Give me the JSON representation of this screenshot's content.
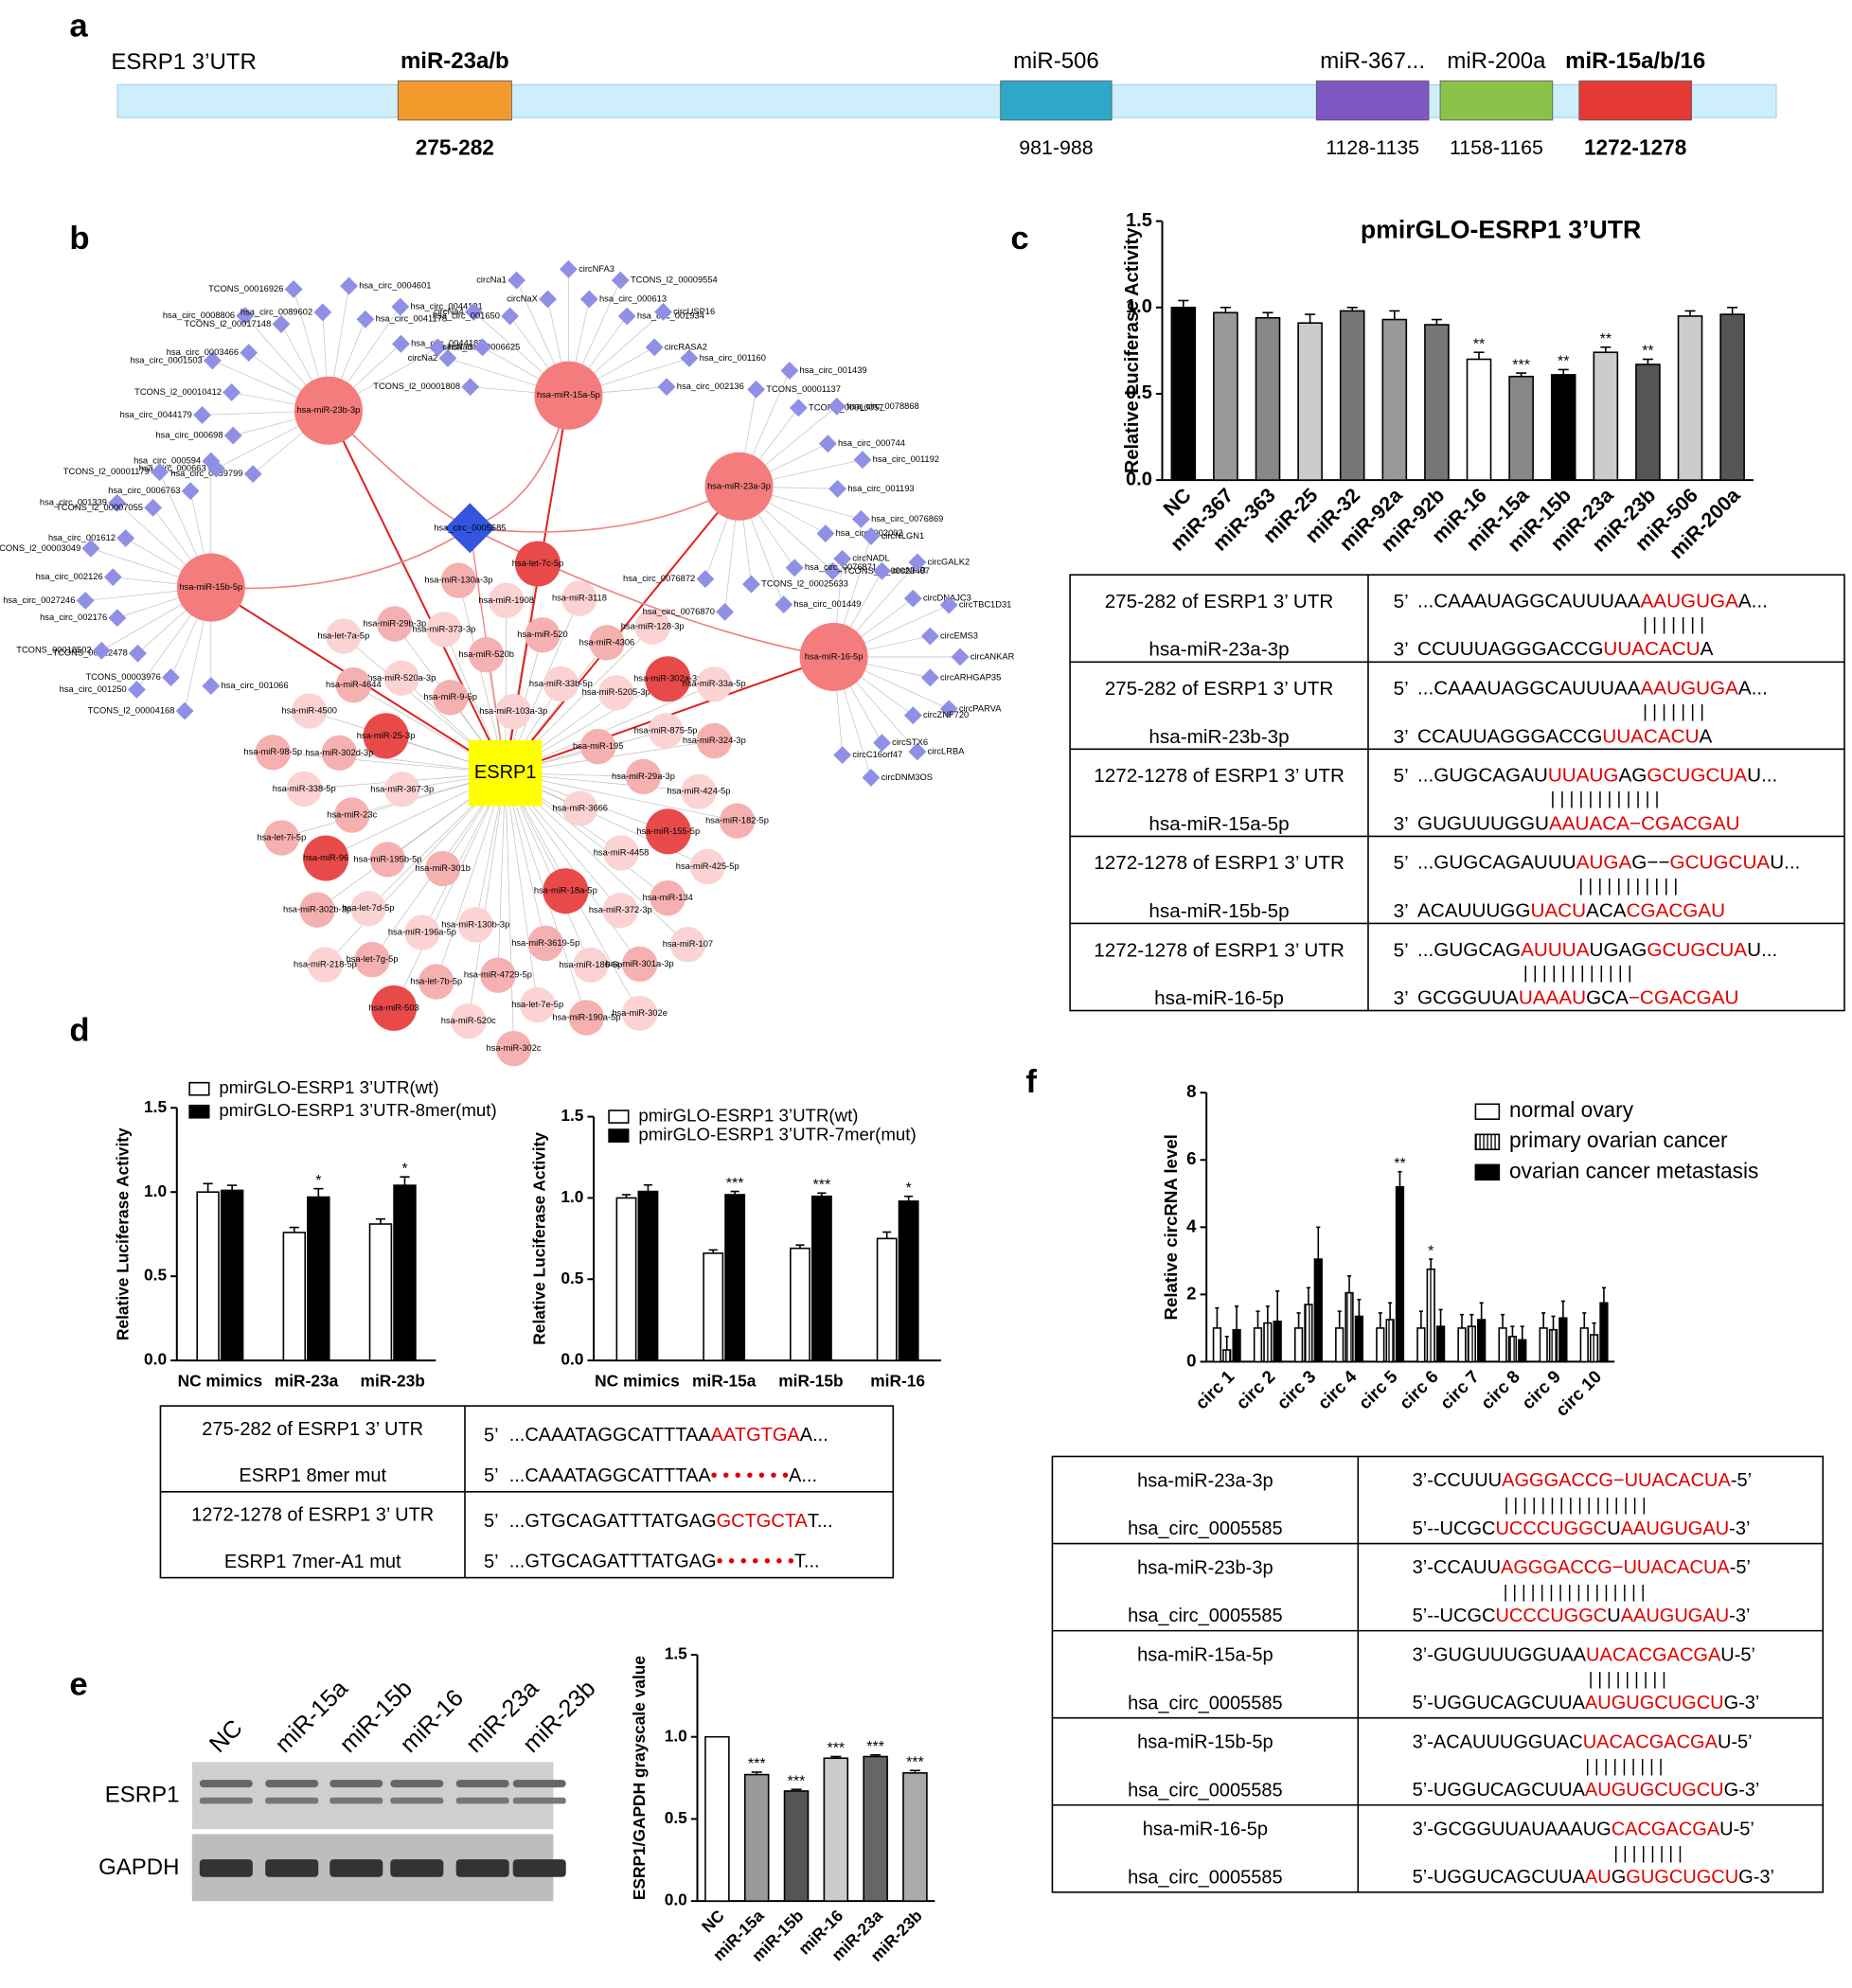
{
  "panel_labels": [
    "a",
    "b",
    "c",
    "d",
    "e",
    "f"
  ],
  "panel_a": {
    "title": "ESRP1 3’UTR",
    "sites": [
      {
        "mirna": "miR-23a/b",
        "position": "275-282",
        "color": "#f39a2c",
        "bold": true
      },
      {
        "mirna": "miR-506",
        "position": "981-988",
        "color": "#2fa8c8",
        "bold": false
      },
      {
        "mirna": "miR-367...",
        "position": "1128-1135",
        "color": "#7e57c2",
        "bold": false
      },
      {
        "mirna": "miR-200a",
        "position": "1158-1165",
        "color": "#8bc34a",
        "bold": false
      },
      {
        "mirna": "miR-15a/b/16",
        "position": "1272-1278",
        "color": "#e53935",
        "bold": true
      }
    ]
  },
  "network": {
    "hub": "ESRP1",
    "circ": "hsa_circ_0005585",
    "mirnas": [
      {
        "name": "hsa-miR-23b-3p",
        "satellites": [
          "hsa_circ_0089799",
          "hsa_circ_000663",
          "hsa_circ_000698",
          "hsa_circ_0044179",
          "TCONS_l2_00010412",
          "hsa_circ_0001503",
          "hsa_circ_0003466",
          "hsa_circ_0008806",
          "TCONS_l2_00017148",
          "TCONS_00016926",
          "hsa_circ_0089602",
          "hsa_circ_0004601",
          "hsa_circ_0041178",
          "hsa_circ_0044191",
          "hsa_circ_0044187",
          "hsa_circ_0006625"
        ]
      },
      {
        "name": "hsa-miR-15a-5p",
        "satellites": [
          "TCONS_l2_00001808",
          "circNa2",
          "circNa3",
          "circNa4",
          "hsa_circ_001650",
          "circNa1",
          "circNaX",
          "circNFA3",
          "hsa_circ_000613",
          "TCONS_l2_00009554",
          "hsa_circ_001934",
          "circUSP16",
          "circRASA2",
          "hsa_circ_001160",
          "hsa_circ_002136"
        ]
      },
      {
        "name": "hsa-miR-23a-3p",
        "satellites": [
          "TCONS_00001137",
          "hsa_circ_001439",
          "TCONS_00010057",
          "hsa_circ_0078868",
          "hsa_circ_000744",
          "hsa_circ_001192",
          "hsa_circ_001193",
          "hsa_circ_0076869",
          "hsa_circ_002002",
          "TCONS_l2_00023407",
          "hsa_circ_0076871",
          "hsa_circ_001449",
          "TCONS_l2_00025633",
          "hsa_circ_0076870",
          "hsa_circ_0076872"
        ]
      },
      {
        "name": "hsa-miR-15b-5p",
        "satellites": [
          "hsa_circ_001066",
          "TCONS_l2_00004168",
          "TCONS_00003976",
          "hsa_circ_001250",
          "TCONS_00022478",
          "TCONS_00018502",
          "hsa_circ_002176",
          "hsa_circ_0027246",
          "hsa_circ_002126",
          "TCONS_l2_00003049",
          "hsa_circ_001612",
          "hsa_circ_001339",
          "TCONS_l2_00007055",
          "TCONS_l2_00001179",
          "hsa_circ_0006763",
          "hsa_circ_000594"
        ]
      },
      {
        "name": "hsa-miR-16-5p",
        "satellites": [
          "circNADL",
          "circNLGN1",
          "circNFIB",
          "circGALK2",
          "circDNAJC3",
          "circTBC1D31",
          "circEMS3",
          "circANKAR",
          "circARHGAP35",
          "circPARVA",
          "circZNF720",
          "circLRBA",
          "circSTX6",
          "circDNM3OS",
          "circC16orf47"
        ]
      }
    ],
    "cluster": [
      "hsa-miR-3666",
      "hsa-miR-301b",
      "hsa-miR-103a-3p",
      "hsa-miR-18a-5p",
      "hsa-miR-367-3p",
      "hsa-miR-195",
      "hsa-miR-130b-3p",
      "hsa-miR-9-5p",
      "hsa-miR-4458",
      "hsa-miR-195b-5p",
      "hsa-miR-33b-5p",
      "hsa-miR-3619-5p",
      "hsa-miR-25-3p",
      "hsa-miR-29a-3p",
      "hsa-miR-196a-5p",
      "hsa-miR-520b",
      "hsa-miR-372-3p",
      "hsa-miR-23c",
      "hsa-miR-5205-3p",
      "hsa-miR-4729-5p",
      "hsa-miR-520a-3p",
      "hsa-miR-155-5p",
      "hsa-let-7d-5p",
      "hsa-miR-520",
      "hsa-miR-186-5p",
      "hsa-miR-302d-3p",
      "hsa-miR-875-5p",
      "hsa-let-7b-5p",
      "hsa-miR-373-3p",
      "hsa-miR-134",
      "hsa-miR-96",
      "hsa-miR-4306",
      "hsa-let-7e-5p",
      "hsa-miR-4644",
      "hsa-miR-424-5p",
      "hsa-let-7g-5p",
      "hsa-miR-1908",
      "hsa-miR-301a-3p",
      "hsa-miR-338-5p",
      "hsa-miR-302a-3p",
      "hsa-miR-520c",
      "hsa-miR-29b-3p",
      "hsa-miR-425-5p",
      "hsa-miR-302b-3p",
      "hsa-miR-3118",
      "hsa-miR-190a-5p",
      "hsa-miR-4500",
      "hsa-miR-324-3p",
      "hsa-miR-503",
      "hsa-miR-130a-3p",
      "hsa-miR-107",
      "hsa-let-7i-5p",
      "hsa-miR-128-3p",
      "hsa-miR-302c",
      "hsa-let-7a-5p",
      "hsa-miR-182-5p",
      "hsa-miR-218-5p",
      "hsa-let-7c-5p",
      "hsa-miR-302e",
      "hsa-miR-98-5p",
      "hsa-miR-33a-5p"
    ]
  },
  "chart_data": [
    {
      "type": "bar",
      "title": "pmirGLO-ESRP1 3’UTR",
      "y_label": "Relative Luciferase Activity",
      "categories": [
        "NC",
        "miR-367",
        "miR-363",
        "miR-25",
        "miR-32",
        "miR-92a",
        "miR-92b",
        "miR-16",
        "miR-15a",
        "miR-15b",
        "miR-23a",
        "miR-23b",
        "miR-506",
        "miR-200a"
      ],
      "values": [
        1.0,
        0.97,
        0.94,
        0.91,
        0.98,
        0.93,
        0.9,
        0.7,
        0.6,
        0.61,
        0.74,
        0.67,
        0.95,
        0.96
      ],
      "errors": [
        0.04,
        0.03,
        0.03,
        0.05,
        0.02,
        0.05,
        0.03,
        0.04,
        0.02,
        0.03,
        0.03,
        0.03,
        0.03,
        0.04
      ],
      "colors": [
        "#000000",
        "#999999",
        "#888888",
        "#cccccc",
        "#777777",
        "#999999",
        "#777777",
        "#ffffff",
        "#888888",
        "#000000",
        "#cccccc",
        "#555555",
        "#cccccc",
        "#555555"
      ],
      "significance": [
        null,
        null,
        null,
        null,
        null,
        null,
        null,
        "**",
        "***",
        "**",
        "**",
        "**",
        null,
        null
      ],
      "ylim": [
        0,
        1.5
      ],
      "yticks": [
        {
          "value": 0,
          "label": "0.0"
        },
        0.5,
        {
          "value": 1,
          "label": "1.0"
        },
        1.5
      ]
    },
    {
      "type": "bar",
      "y_label": "Relative Luciferase Activity",
      "categories": [
        "NC mimics",
        "miR-23a",
        "miR-23b"
      ],
      "series": [
        {
          "name": "pmirGLO-ESRP1 3’UTR(wt)",
          "color": "#ffffff",
          "values": [
            1.0,
            0.76,
            0.81
          ],
          "errors": [
            0.05,
            0.03,
            0.03
          ]
        },
        {
          "name": "pmirGLO-ESRP1 3’UTR-8mer(mut)",
          "color": "#000000",
          "values": [
            1.01,
            0.97,
            1.04
          ],
          "errors": [
            0.03,
            0.05,
            0.05
          ],
          "significance": [
            null,
            "*",
            "*"
          ]
        }
      ],
      "ylim": [
        0,
        1.5
      ],
      "yticks": [
        {
          "value": 0,
          "label": "0.0"
        },
        0.5,
        {
          "value": 1,
          "label": "1.0"
        },
        1.5
      ]
    },
    {
      "type": "bar",
      "y_label": "Relative Luciferase Activity",
      "categories": [
        "NC mimics",
        "miR-15a",
        "miR-15b",
        "miR-16"
      ],
      "series": [
        {
          "name": "pmirGLO-ESRP1 3’UTR(wt)",
          "color": "#ffffff",
          "values": [
            1.0,
            0.66,
            0.69,
            0.75
          ],
          "errors": [
            0.02,
            0.02,
            0.02,
            0.04
          ]
        },
        {
          "name": "pmirGLO-ESRP1 3’UTR-7mer(mut)",
          "color": "#000000",
          "values": [
            1.04,
            1.02,
            1.01,
            0.98
          ],
          "errors": [
            0.04,
            0.02,
            0.02,
            0.03
          ],
          "significance": [
            null,
            "***",
            "***",
            "*"
          ]
        }
      ],
      "ylim": [
        0,
        1.5
      ],
      "yticks": [
        {
          "value": 0,
          "label": "0.0"
        },
        0.5,
        {
          "value": 1,
          "label": "1.0"
        },
        1.5
      ]
    },
    {
      "type": "bar",
      "y_label": "ESRP1/GAPDH grayscale value",
      "categories": [
        "NC",
        "miR-15a",
        "miR-15b",
        "miR-16",
        "miR-23a",
        "miR-23b"
      ],
      "values": [
        1.0,
        0.77,
        0.67,
        0.87,
        0.88,
        0.78
      ],
      "errors": [
        null,
        0.015,
        0.01,
        0.01,
        0.01,
        0.015
      ],
      "colors": [
        "#ffffff",
        "#999999",
        "#555555",
        "#cccccc",
        "#666666",
        "#aaaaaa"
      ],
      "significance": [
        null,
        "***",
        "***",
        "***",
        "***",
        "***"
      ],
      "ylim": [
        0,
        1.5
      ],
      "yticks": [
        {
          "value": 0,
          "label": "0.0"
        },
        0.5,
        {
          "value": 1,
          "label": "1.0"
        },
        1.5
      ]
    },
    {
      "type": "bar",
      "y_label": "Relative circRNA level",
      "categories": [
        "circ 1",
        "circ 2",
        "circ 3",
        "circ 4",
        "circ 5",
        "circ 6",
        "circ 7",
        "circ 8",
        "circ 9",
        "circ 10"
      ],
      "series": [
        {
          "name": "normal ovary",
          "color": "#ffffff",
          "values": [
            1,
            1,
            1,
            1,
            1,
            1,
            1,
            1,
            1,
            1
          ],
          "errors": [
            0.6,
            0.5,
            0.45,
            0.5,
            0.45,
            0.5,
            0.4,
            0.4,
            0.45,
            0.45
          ]
        },
        {
          "name": "primary ovarian cancer",
          "color": "#ffffff",
          "hatch": true,
          "values": [
            0.35,
            1.15,
            1.7,
            2.05,
            1.25,
            2.75,
            1.05,
            0.75,
            0.95,
            0.8
          ],
          "errors": [
            0.4,
            0.5,
            0.5,
            0.5,
            0.5,
            0.3,
            0.35,
            0.3,
            0.4,
            0.35
          ],
          "significance": [
            null,
            null,
            null,
            null,
            null,
            "*",
            null,
            null,
            null,
            null
          ]
        },
        {
          "name": "ovarian cancer metastasis",
          "color": "#000000",
          "values": [
            0.95,
            1.2,
            3.05,
            1.35,
            5.2,
            1.05,
            1.25,
            0.65,
            1.3,
            1.75
          ],
          "errors": [
            0.7,
            0.9,
            0.95,
            0.5,
            0.45,
            0.5,
            0.5,
            0.4,
            0.5,
            0.45
          ],
          "significance": [
            null,
            null,
            null,
            null,
            "**",
            null,
            null,
            null,
            null,
            null
          ]
        }
      ],
      "ylim": [
        0,
        8
      ],
      "yticks": [
        0,
        2,
        4,
        6,
        8
      ]
    }
  ],
  "panel_c_table": {
    "rows": [
      {
        "site": "275-282 of ESRP1 3’ UTR",
        "mirna": "hsa-miR-23a-3p",
        "top": {
          "prefix": "5’",
          "segments": [
            "...CAAAUAGGCAUUUAA",
            "AAUGUGA",
            "A..."
          ]
        },
        "pairs": "| | | | | | |",
        "bottom": {
          "prefix": "3’",
          "segments": [
            "CCUUUAGGGACCG",
            "UUACACU",
            "A"
          ]
        }
      },
      {
        "site": "275-282 of ESRP1 3’ UTR",
        "mirna": "hsa-miR-23b-3p",
        "top": {
          "prefix": "5’",
          "segments": [
            "...CAAAUAGGCAUUUAA",
            "AAUGUGA",
            "A..."
          ]
        },
        "pairs": "| | | | | | |",
        "bottom": {
          "prefix": "3’",
          "segments": [
            "CCAUUAGGGACCG",
            "UUACACU",
            "A"
          ]
        }
      },
      {
        "site": "1272-1278 of ESRP1 3’ UTR",
        "mirna": "hsa-miR-15a-5p",
        "top": {
          "prefix": "5’",
          "segments": [
            "...GUGCAGAU",
            "UUAUG",
            "AG",
            "GCUGCUA",
            "U..."
          ]
        },
        "pairs": "| | | | |        | | | | | | |",
        "bottom": {
          "prefix": "3’",
          "segments": [
            "GUGUUUGGU",
            "AAUACA−CGACGAU"
          ]
        }
      },
      {
        "site": "1272-1278 of ESRP1 3’ UTR",
        "mirna": "hsa-miR-15b-5p",
        "top": {
          "prefix": "5’",
          "segments": [
            "...GUGCAGAUUU",
            "AUGA",
            "G−−",
            "GCUGCUA",
            "U..."
          ]
        },
        "pairs": "| | | |          | | | | | | |",
        "bottom": {
          "prefix": "3’",
          "segments": [
            "ACAUUUGG",
            "UACU",
            "ACA",
            "CGACGAU"
          ]
        }
      },
      {
        "site": "1272-1278 of ESRP1 3’ UTR",
        "mirna": "hsa-miR-16-5p",
        "top": {
          "prefix": "5’",
          "segments": [
            "...GUGCAG",
            "AUUUA",
            "UGAG",
            "GCUGCUA",
            "U..."
          ]
        },
        "pairs": "| | | | |          | | | | | | |",
        "bottom": {
          "prefix": "3’",
          "segments": [
            "GCGGUUA",
            "UAAAU",
            "GCA",
            "−CGACGAU"
          ]
        }
      }
    ]
  },
  "panel_d_table": {
    "rows": [
      {
        "site": "275-282 of ESRP1 3’ UTR",
        "mirna": "ESRP1 8mer mut",
        "top": {
          "prefix": "5’",
          "segments": [
            "...CAAATAGGCATTTAA",
            "AATGTGA",
            "A..."
          ]
        },
        "bottom": {
          "prefix": "5’",
          "segments": [
            "...CAAATAGGCATTTAA",
            "• • • • • • •",
            "A..."
          ]
        }
      },
      {
        "site": "1272-1278 of ESRP1 3’ UTR",
        "mirna": "ESRP1 7mer-A1 mut",
        "top": {
          "prefix": "5’",
          "segments": [
            "...GTGCAGATTTATGAG",
            "GCTGCTA",
            "T..."
          ]
        },
        "bottom": {
          "prefix": "5’",
          "segments": [
            "...GTGCAGATTTATGAG",
            "• • • • • • •",
            "T..."
          ]
        }
      }
    ]
  },
  "panel_e_blot": {
    "lanes": [
      "NC",
      "miR-15a",
      "miR-15b",
      "miR-16",
      "miR-23a",
      "miR-23b"
    ],
    "bands": [
      "ESRP1",
      "GAPDH"
    ]
  },
  "panel_f_table": {
    "rows": [
      {
        "site": "hsa-miR-23a-3p",
        "mirna": "hsa_circ_0005585",
        "top": {
          "segments": [
            "3’-CCUUU",
            "AGGGACCG−UUACACUA",
            "-5’"
          ]
        },
        "pairs": "| | | | | | | |   | | | | | | | |",
        "bottom": {
          "segments": [
            "5’--UCGC",
            "UCCCUGGC",
            "U",
            "AAUGUGAU",
            "-3’"
          ]
        }
      },
      {
        "site": "hsa-miR-23b-3p",
        "mirna": "hsa_circ_0005585",
        "top": {
          "segments": [
            "3’-CCAUU",
            "AGGGACCG−UUACACUA",
            "-5’"
          ]
        },
        "pairs": "| | | | | | | |   | | | | | | | |",
        "bottom": {
          "segments": [
            "5’--UCGC",
            "UCCCUGGC",
            "U",
            "AAUGUGAU",
            "-3’"
          ]
        }
      },
      {
        "site": "hsa-miR-15a-5p",
        "mirna": "hsa_circ_0005585",
        "top": {
          "segments": [
            "3’-GUGUUUGGUAA",
            "UACACGACGA",
            "U-5’"
          ]
        },
        "pairs": "| | | | | | | | |",
        "bottom": {
          "segments": [
            "5’-UGGUCAGCUUA",
            "AUGUGCUGCU",
            "G-3’"
          ]
        }
      },
      {
        "site": "hsa-miR-15b-5p",
        "mirna": "hsa_circ_0005585",
        "top": {
          "segments": [
            "3’-ACAUUUGGUAC",
            "UACACGACGA",
            "U-5’"
          ]
        },
        "pairs": "| | | | | | | | |",
        "bottom": {
          "segments": [
            "5’-UGGUCAGCUUA",
            "AUGUGCUGCU",
            "G-3’"
          ]
        }
      },
      {
        "site": "hsa-miR-16-5p",
        "mirna": "hsa_circ_0005585",
        "top": {
          "segments": [
            "3’-GCGGUUAUAAAUG",
            "CACGACGA",
            "U-5’"
          ]
        },
        "pairs": "| | | | | | | |",
        "bottom": {
          "segments": [
            "5’-UGGUCAGCUUA",
            "AU",
            "G",
            "GUGCUGCU",
            "G-3’"
          ]
        }
      }
    ]
  }
}
